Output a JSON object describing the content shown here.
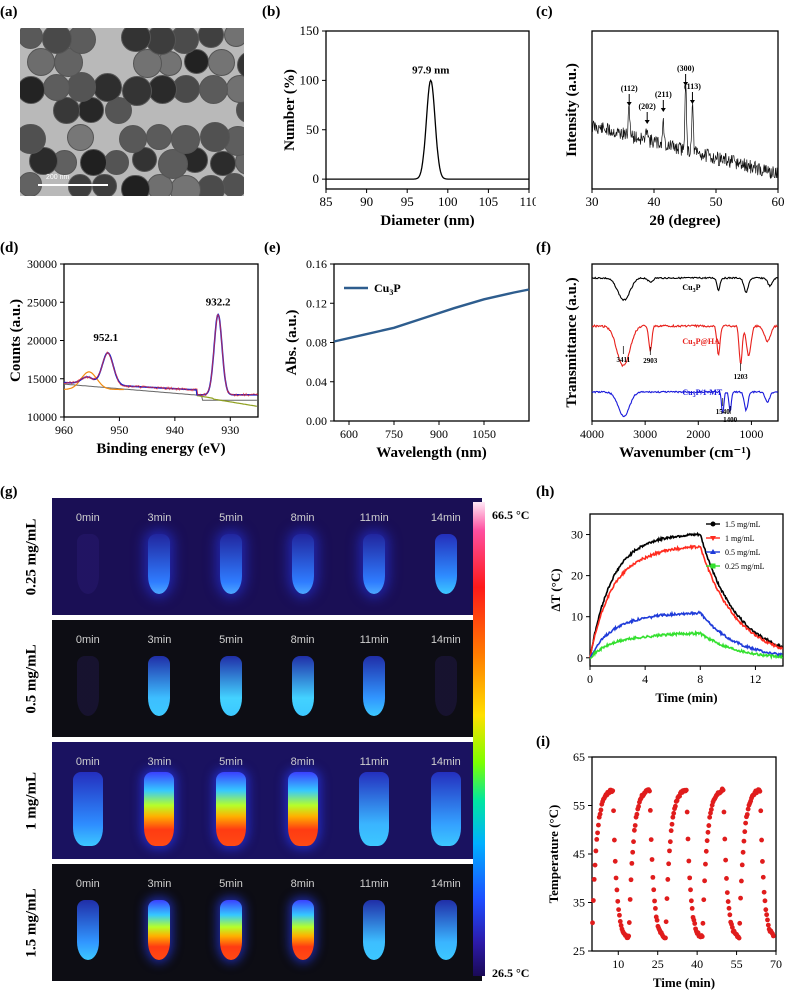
{
  "panels": {
    "a": "(a)",
    "b": "(b)",
    "c": "(c)",
    "d": "(d)",
    "e": "(e)",
    "f": "(f)",
    "g": "(g)",
    "h": "(h)",
    "i": "(i)"
  },
  "tem": {
    "scale_bar": "200 nm"
  },
  "thermal": {
    "rows": [
      "0.25 mg/mL",
      "0.5 mg/mL",
      "1 mg/mL",
      "1.5 mg/mL"
    ],
    "times": [
      "0min",
      "3min",
      "5min",
      "8min",
      "11min",
      "14min"
    ],
    "scale_max": "66.5 °C",
    "scale_min": "26.5 °C"
  },
  "chart_data": [
    {
      "id": "b",
      "type": "line",
      "xlabel": "Diameter (nm)",
      "ylabel": "Number (%)",
      "xlim": [
        85,
        110
      ],
      "ylim": [
        0,
        150
      ],
      "xticks": [
        85,
        90,
        95,
        100,
        105,
        110
      ],
      "yticks": [
        0,
        50,
        100,
        150
      ],
      "peak_label": "97.9 nm",
      "x": [
        85,
        95,
        96,
        96.5,
        97,
        97.5,
        97.9,
        98.3,
        98.8,
        99.3,
        100,
        110
      ],
      "y": [
        0,
        0,
        0,
        3,
        35,
        80,
        100,
        80,
        30,
        3,
        0,
        0
      ]
    },
    {
      "id": "c",
      "type": "line",
      "xlabel": "2θ (degree)",
      "ylabel": "Intensity (a.u.)",
      "xlim": [
        30,
        60
      ],
      "xticks": [
        30,
        40,
        50,
        60
      ],
      "peaks": [
        {
          "label": "(112)",
          "x": 36.0
        },
        {
          "label": "(202)",
          "x": 38.9
        },
        {
          "label": "(211)",
          "x": 41.5
        },
        {
          "label": "(300)",
          "x": 45.1
        },
        {
          "label": "(113)",
          "x": 46.2
        }
      ]
    },
    {
      "id": "d",
      "type": "line",
      "xlabel": "Binding energy (eV)",
      "ylabel": "Counts (a.u.)",
      "xlim": [
        960,
        925
      ],
      "ylim": [
        10000,
        30000
      ],
      "xticks": [
        960,
        950,
        940,
        930
      ],
      "yticks": [
        10000,
        15000,
        20000,
        25000,
        30000
      ],
      "annotations": [
        "952.1",
        "932.2"
      ],
      "peaks": [
        {
          "x": 952.1,
          "y": 18600
        },
        {
          "x": 932.2,
          "y": 23300
        }
      ]
    },
    {
      "id": "e",
      "type": "line",
      "xlabel": "Wavelength (nm)",
      "ylabel": "Abs. (a.u.)",
      "xlim": [
        550,
        1200
      ],
      "ylim": [
        0,
        0.16
      ],
      "xticks": [
        600,
        750,
        900,
        1050
      ],
      "yticks": [
        0.0,
        0.04,
        0.08,
        0.12,
        0.16
      ],
      "legend": "Cu3P",
      "x": [
        550,
        650,
        750,
        850,
        950,
        1050,
        1150,
        1200
      ],
      "y": [
        0.081,
        0.088,
        0.095,
        0.105,
        0.115,
        0.124,
        0.131,
        0.134
      ]
    },
    {
      "id": "f",
      "type": "line",
      "xlabel": "Wavenumber (cm⁻¹)",
      "ylabel": "Transmittance (a.u.)",
      "xlim": [
        4000,
        500
      ],
      "xticks": [
        4000,
        3000,
        2000,
        1000
      ],
      "series": [
        {
          "name": "Cu3P",
          "color": "#000000"
        },
        {
          "name": "Cu3P@HA",
          "color": "#e8211c"
        },
        {
          "name": "Cu3P/1-MT",
          "color": "#1a1adb"
        }
      ],
      "annotations": [
        "3411",
        "2903",
        "1203",
        "1540",
        "1400"
      ]
    },
    {
      "id": "h",
      "type": "line",
      "xlabel": "Time (min)",
      "ylabel": "ΔT (°C)",
      "xlim": [
        0,
        14
      ],
      "ylim": [
        -2,
        35
      ],
      "xticks": [
        0,
        4,
        8,
        12
      ],
      "yticks": [
        0,
        10,
        20,
        30
      ],
      "series": [
        {
          "name": "1.5 mg/mL",
          "color": "#000000",
          "plateau": 30,
          "peak": 30.2
        },
        {
          "name": "1 mg/mL",
          "color": "#ff2a1e",
          "plateau": 26.5,
          "peak": 27.2
        },
        {
          "name": "0.5 mg/mL",
          "color": "#1f3bd9",
          "plateau": 10.5,
          "peak": 11
        },
        {
          "name": "0.25 mg/mL",
          "color": "#33e02e",
          "plateau": 5.5,
          "peak": 6
        }
      ]
    },
    {
      "id": "i",
      "type": "scatter",
      "xlabel": "Time (min)",
      "ylabel": "Temperature (°C)",
      "xlim": [
        0,
        70
      ],
      "ylim": [
        25,
        65
      ],
      "xticks": [
        10,
        25,
        40,
        55,
        70
      ],
      "yticks": [
        25,
        35,
        45,
        55,
        65
      ],
      "cycle_starts": [
        0,
        14,
        28,
        42,
        56
      ],
      "cycle_period": 14,
      "max_temp": 58.5,
      "min_temp": 27.5
    }
  ]
}
